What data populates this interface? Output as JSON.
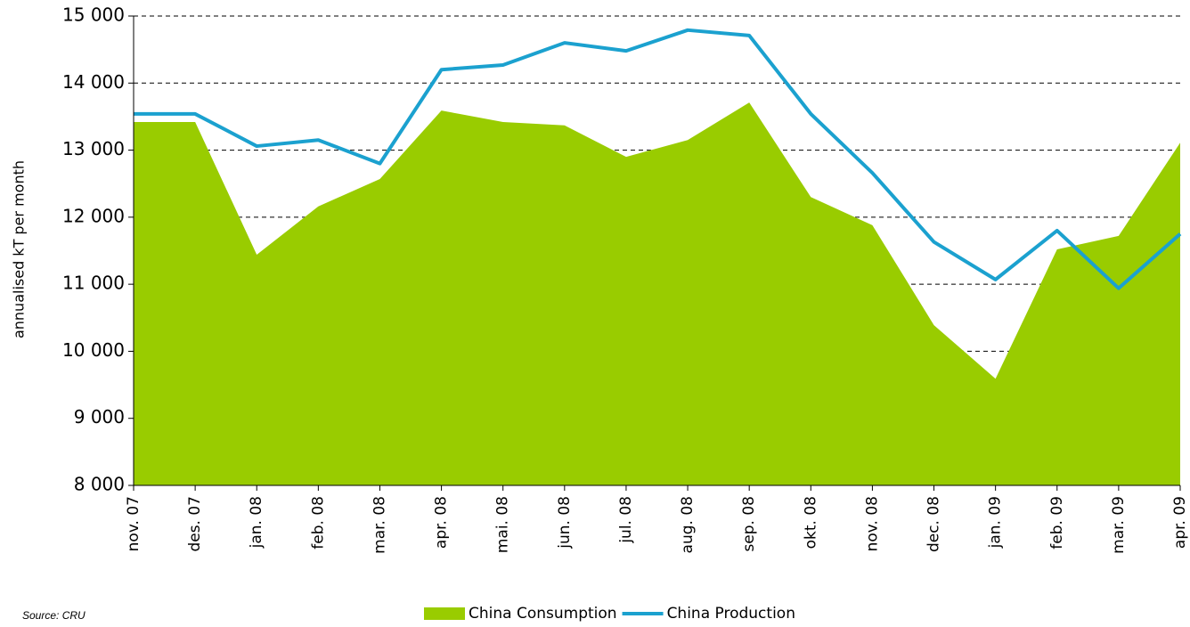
{
  "chart_data": {
    "type": "area-line",
    "y_label": "annualised kT per month",
    "source": "Source: CRU",
    "categories": [
      "nov. 07",
      "des. 07",
      "jan. 08",
      "feb. 08",
      "mar. 08",
      "apr. 08",
      "mai. 08",
      "jun. 08",
      "jul. 08",
      "aug. 08",
      "sep. 08",
      "okt. 08",
      "nov. 08",
      "dec. 08",
      "jan. 09",
      "feb. 09",
      "mar. 09",
      "apr. 09"
    ],
    "series": [
      {
        "name": "China Consumption",
        "kind": "area",
        "color": "#99cc00",
        "values": [
          13420,
          13420,
          11440,
          12160,
          12570,
          13590,
          13420,
          13370,
          12900,
          13150,
          13710,
          12300,
          11880,
          10390,
          9590,
          11520,
          11720,
          13110
        ]
      },
      {
        "name": "China Production",
        "kind": "line",
        "color": "#1ba1cf",
        "values": [
          13540,
          13540,
          13060,
          13150,
          12800,
          14200,
          14270,
          14600,
          14480,
          14790,
          14710,
          13540,
          12660,
          11630,
          11070,
          11800,
          10940,
          11750
        ]
      }
    ],
    "ylim": [
      8000,
      15000
    ],
    "yticks": [
      {
        "value": 8000,
        "label": "8 000"
      },
      {
        "value": 9000,
        "label": "9 000"
      },
      {
        "value": 10000,
        "label": "10 000"
      },
      {
        "value": 11000,
        "label": "11 000"
      },
      {
        "value": 12000,
        "label": "12 000"
      },
      {
        "value": 13000,
        "label": "13 000"
      },
      {
        "value": 14000,
        "label": "14 000"
      },
      {
        "value": 15000,
        "label": "15 000"
      }
    ],
    "grid": true
  }
}
